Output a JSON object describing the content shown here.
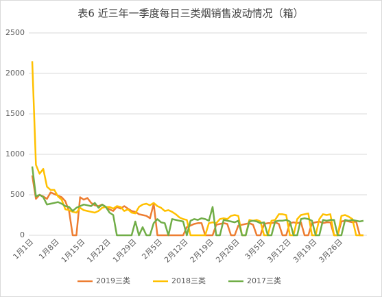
{
  "chart_data": {
    "type": "line",
    "title": "表6  近三年一季度每日三类烟销售波动情况（箱）",
    "categories": [
      "1月1日",
      null,
      null,
      null,
      null,
      null,
      null,
      "1月8日",
      null,
      null,
      null,
      null,
      null,
      null,
      "1月15日",
      null,
      null,
      null,
      null,
      null,
      null,
      "1月22日",
      null,
      null,
      null,
      null,
      null,
      null,
      "1月29日",
      null,
      null,
      null,
      null,
      null,
      null,
      "2月5日",
      null,
      null,
      null,
      null,
      null,
      null,
      "2月12日",
      null,
      null,
      null,
      null,
      null,
      null,
      "2月19日",
      null,
      null,
      null,
      null,
      null,
      null,
      "2月26日",
      null,
      null,
      null,
      null,
      null,
      null,
      "3月5日",
      null,
      null,
      null,
      null,
      null,
      null,
      "3月12日",
      null,
      null,
      null,
      null,
      null,
      null,
      "3月19日",
      null,
      null,
      null,
      null,
      null,
      null,
      "3月26日",
      null,
      null,
      null,
      null,
      null,
      null
    ],
    "series": [
      {
        "name": "2019三类",
        "color": "#ed7d31",
        "values": [
          740,
          450,
          500,
          480,
          450,
          530,
          510,
          490,
          470,
          420,
          300,
          0,
          0,
          470,
          440,
          460,
          400,
          370,
          360,
          380,
          350,
          320,
          300,
          350,
          330,
          360,
          330,
          300,
          290,
          260,
          250,
          240,
          210,
          390,
          0,
          0,
          0,
          0,
          0,
          0,
          0,
          0,
          100,
          120,
          140,
          150,
          150,
          0,
          0,
          0,
          130,
          140,
          150,
          140,
          0,
          0,
          120,
          130,
          140,
          150,
          130,
          0,
          0,
          140,
          150,
          150,
          160,
          140,
          0,
          0,
          150,
          160,
          150,
          160,
          0,
          0,
          150,
          160,
          170,
          150,
          160,
          160,
          0,
          0,
          170,
          180,
          170,
          160,
          170,
          0,
          0
        ]
      },
      {
        "name": "2018三类",
        "color": "#ffc000",
        "values": [
          2150,
          870,
          760,
          820,
          600,
          560,
          560,
          480,
          440,
          320,
          310,
          290,
          280,
          340,
          310,
          300,
          290,
          280,
          300,
          340,
          350,
          350,
          330,
          360,
          350,
          300,
          320,
          280,
          270,
          350,
          380,
          390,
          370,
          400,
          360,
          340,
          300,
          310,
          290,
          260,
          220,
          200,
          190,
          0,
          0,
          0,
          0,
          0,
          150,
          160,
          150,
          200,
          210,
          200,
          240,
          250,
          240,
          0,
          0,
          190,
          180,
          190,
          170,
          0,
          0,
          180,
          190,
          260,
          260,
          250,
          0,
          0,
          200,
          250,
          260,
          270,
          0,
          0,
          200,
          260,
          250,
          260,
          0,
          0,
          240,
          250,
          230,
          200,
          0,
          0,
          0
        ]
      },
      {
        "name": "2017三类",
        "color": "#70ad47",
        "values": [
          850,
          480,
          500,
          470,
          380,
          390,
          400,
          410,
          390,
          360,
          350,
          300,
          340,
          360,
          380,
          370,
          360,
          400,
          340,
          380,
          350,
          280,
          250,
          0,
          0,
          0,
          0,
          0,
          170,
          0,
          100,
          0,
          0,
          150,
          200,
          160,
          150,
          0,
          200,
          190,
          180,
          170,
          0,
          180,
          200,
          190,
          210,
          200,
          180,
          350,
          0,
          0,
          190,
          180,
          170,
          160,
          180,
          0,
          0,
          170,
          180,
          170,
          150,
          160,
          0,
          0,
          170,
          180,
          180,
          190,
          170,
          0,
          0,
          200,
          210,
          200,
          180,
          0,
          0,
          190,
          180,
          190,
          190,
          0,
          0,
          190,
          180,
          190,
          180,
          170,
          180
        ]
      }
    ],
    "ylim": [
      0,
      2500
    ],
    "yticks": [
      0,
      500,
      1000,
      1500,
      2000,
      2500
    ],
    "grid": true,
    "legend": "bottom"
  }
}
